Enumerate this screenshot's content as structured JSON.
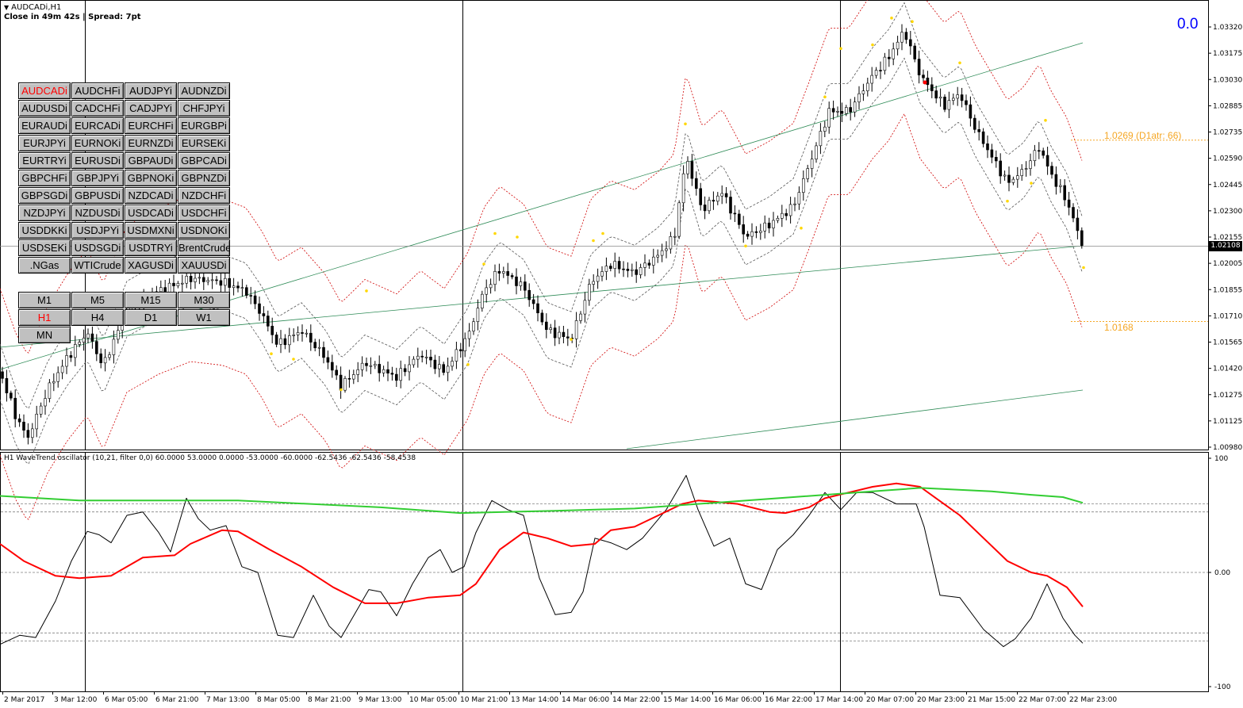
{
  "window": {
    "symbol_title": "AUDCADi,H1",
    "timer_text": "Close in 49m 42s | Spread: 7pt",
    "value_display": "0.0"
  },
  "symbol_buttons": [
    {
      "label": "AUDCADi",
      "active": true
    },
    {
      "label": "AUDCHFi",
      "active": false
    },
    {
      "label": "AUDJPYi",
      "active": false
    },
    {
      "label": "AUDNZDi",
      "active": false
    },
    {
      "label": "AUDUSDi",
      "active": false
    },
    {
      "label": "CADCHFi",
      "active": false
    },
    {
      "label": "CADJPYi",
      "active": false
    },
    {
      "label": "CHFJPYi",
      "active": false
    },
    {
      "label": "EURAUDi",
      "active": false
    },
    {
      "label": "EURCADi",
      "active": false
    },
    {
      "label": "EURCHFi",
      "active": false
    },
    {
      "label": "EURGBPi",
      "active": false
    },
    {
      "label": "EURJPYi",
      "active": false
    },
    {
      "label": "EURNOKi",
      "active": false
    },
    {
      "label": "EURNZDi",
      "active": false
    },
    {
      "label": "EURSEKi",
      "active": false
    },
    {
      "label": "EURTRYi",
      "active": false
    },
    {
      "label": "EURUSDi",
      "active": false
    },
    {
      "label": "GBPAUDi",
      "active": false
    },
    {
      "label": "GBPCADi",
      "active": false
    },
    {
      "label": "GBPCHFi",
      "active": false
    },
    {
      "label": "GBPJPYi",
      "active": false
    },
    {
      "label": "GBPNOKi",
      "active": false
    },
    {
      "label": "GBPNZDi",
      "active": false
    },
    {
      "label": "GBPSGDi",
      "active": false
    },
    {
      "label": "GBPUSDi",
      "active": false
    },
    {
      "label": "NZDCADi",
      "active": false
    },
    {
      "label": "NZDCHFi",
      "active": false
    },
    {
      "label": "NZDJPYi",
      "active": false
    },
    {
      "label": "NZDUSDi",
      "active": false
    },
    {
      "label": "USDCADi",
      "active": false
    },
    {
      "label": "USDCHFi",
      "active": false
    },
    {
      "label": "USDDKKi",
      "active": false
    },
    {
      "label": "USDJPYi",
      "active": false
    },
    {
      "label": "USDMXNi",
      "active": false
    },
    {
      "label": "USDNOKi",
      "active": false
    },
    {
      "label": "USDSEKi",
      "active": false
    },
    {
      "label": "USDSGDi",
      "active": false
    },
    {
      "label": "USDTRYi",
      "active": false
    },
    {
      "label": "BrentCrude",
      "active": false
    },
    {
      "label": ".NGas",
      "active": false
    },
    {
      "label": "WTICrude",
      "active": false
    },
    {
      "label": "XAGUSDi",
      "active": false
    },
    {
      "label": "XAUUSDi",
      "active": false
    }
  ],
  "timeframe_buttons": [
    {
      "label": "M1",
      "active": false
    },
    {
      "label": "M5",
      "active": false
    },
    {
      "label": "M15",
      "active": false
    },
    {
      "label": "M30",
      "active": false
    },
    {
      "label": "H1",
      "active": true
    },
    {
      "label": "H4",
      "active": false
    },
    {
      "label": "D1",
      "active": false
    },
    {
      "label": "W1",
      "active": false
    },
    {
      "label": "MN",
      "active": false
    }
  ],
  "chart_data": [
    {
      "type": "candlestick",
      "ylim": [
        1.0098,
        1.034
      ],
      "price_ticks": [
        "1.03320",
        "1.03175",
        "1.03030",
        "1.02885",
        "1.02735",
        "1.02590",
        "1.02445",
        "1.02300",
        "1.02155",
        "1.02005",
        "1.01855",
        "1.01710",
        "1.01565",
        "1.01420",
        "1.01275",
        "1.01125",
        "1.00980"
      ],
      "current_price": "1.02108",
      "levels": [
        {
          "label": "1.0269  (D1atr: 66)",
          "value": 1.0269
        },
        {
          "label": "1.0168",
          "value": 1.0168
        }
      ],
      "price_path": [
        [
          0,
          1.014
        ],
        [
          20,
          1.0115
        ],
        [
          35,
          1.0103
        ],
        [
          60,
          1.013
        ],
        [
          85,
          1.0148
        ],
        [
          110,
          1.0162
        ],
        [
          130,
          1.0143
        ],
        [
          160,
          1.0175
        ],
        [
          200,
          1.0185
        ],
        [
          240,
          1.0192
        ],
        [
          280,
          1.019
        ],
        [
          310,
          1.0185
        ],
        [
          330,
          1.0172
        ],
        [
          350,
          1.0155
        ],
        [
          380,
          1.0163
        ],
        [
          410,
          1.0148
        ],
        [
          430,
          1.0132
        ],
        [
          460,
          1.0145
        ],
        [
          500,
          1.0137
        ],
        [
          530,
          1.015
        ],
        [
          560,
          1.014
        ],
        [
          590,
          1.016
        ],
        [
          610,
          1.0185
        ],
        [
          630,
          1.0197
        ],
        [
          660,
          1.0187
        ],
        [
          690,
          1.0163
        ],
        [
          720,
          1.0158
        ],
        [
          745,
          1.019
        ],
        [
          770,
          1.02
        ],
        [
          800,
          1.0195
        ],
        [
          830,
          1.0205
        ],
        [
          850,
          1.0215
        ],
        [
          865,
          1.026
        ],
        [
          885,
          1.023
        ],
        [
          910,
          1.024
        ],
        [
          940,
          1.0215
        ],
        [
          970,
          1.0222
        ],
        [
          1000,
          1.0232
        ],
        [
          1020,
          1.0255
        ],
        [
          1045,
          1.0285
        ],
        [
          1070,
          1.0285
        ],
        [
          1100,
          1.0305
        ],
        [
          1120,
          1.0315
        ],
        [
          1140,
          1.033
        ],
        [
          1160,
          1.0305
        ],
        [
          1190,
          1.0288
        ],
        [
          1210,
          1.0295
        ],
        [
          1230,
          1.0275
        ],
        [
          1250,
          1.026
        ],
        [
          1270,
          1.0245
        ],
        [
          1290,
          1.0252
        ],
        [
          1310,
          1.0265
        ],
        [
          1325,
          1.025
        ],
        [
          1345,
          1.0235
        ],
        [
          1365,
          1.021
        ]
      ],
      "fractal_points": [
        [
          1124,
          1.0337
        ],
        [
          1150,
          1.0335
        ],
        [
          1100,
          1.0322
        ],
        [
          1060,
          1.032
        ],
        [
          1040,
          1.0293
        ],
        [
          864,
          1.0278
        ],
        [
          1210,
          1.0312
        ],
        [
          1318,
          1.028
        ],
        [
          652,
          1.0215
        ],
        [
          624,
          1.0217
        ],
        [
          760,
          1.0217
        ],
        [
          748,
          1.0213
        ],
        [
          462,
          1.0185
        ],
        [
          610,
          1.02
        ],
        [
          1366,
          1.0198
        ],
        [
          940,
          1.021
        ],
        [
          1010,
          1.022
        ],
        [
          1270,
          1.0235
        ],
        [
          1300,
          1.0245
        ],
        [
          590,
          1.0144
        ],
        [
          370,
          1.0147
        ],
        [
          342,
          1.015
        ],
        [
          720,
          1.0158
        ],
        [
          430,
          1.013
        ]
      ],
      "vertical_lines_x": [
        107,
        583,
        1059
      ]
    },
    {
      "type": "line",
      "title": "H1 WaveTrend oscillator (10,21, filter 0,0) 60.0000 53.0000 0.0000 -53.0000 -60.0000 -62.5436 -62.5436 -58.4538",
      "ylim": [
        -100,
        100
      ],
      "y_ticks": [
        "100",
        "0.00",
        "-100"
      ],
      "levels": [
        60,
        53,
        0,
        -53,
        -60
      ],
      "series": [
        {
          "name": "",
          "color": "#000000",
          "points": [
            [
              0,
              -63
            ],
            [
              25,
              -55
            ],
            [
              45,
              -57
            ],
            [
              70,
              -25
            ],
            [
              90,
              10
            ],
            [
              110,
              36
            ],
            [
              125,
              33
            ],
            [
              140,
              26
            ],
            [
              160,
              50
            ],
            [
              180,
              53
            ],
            [
              200,
              35
            ],
            [
              215,
              18
            ],
            [
              235,
              65
            ],
            [
              250,
              47
            ],
            [
              265,
              37
            ],
            [
              285,
              41
            ],
            [
              305,
              5
            ],
            [
              325,
              0
            ],
            [
              350,
              -55
            ],
            [
              370,
              -57
            ],
            [
              395,
              -20
            ],
            [
              415,
              -47
            ],
            [
              430,
              -57
            ],
            [
              450,
              -33
            ],
            [
              465,
              -15
            ],
            [
              480,
              -17
            ],
            [
              500,
              -38
            ],
            [
              520,
              -10
            ],
            [
              540,
              13
            ],
            [
              555,
              20
            ],
            [
              570,
              0
            ],
            [
              585,
              5
            ],
            [
              600,
              35
            ],
            [
              620,
              63
            ],
            [
              640,
              55
            ],
            [
              660,
              50
            ],
            [
              680,
              -5
            ],
            [
              700,
              -37
            ],
            [
              720,
              -35
            ],
            [
              735,
              -17
            ],
            [
              750,
              30
            ],
            [
              770,
              26
            ],
            [
              790,
              20
            ],
            [
              810,
              30
            ],
            [
              840,
              55
            ],
            [
              865,
              85
            ],
            [
              880,
              55
            ],
            [
              900,
              23
            ],
            [
              920,
              30
            ],
            [
              940,
              -10
            ],
            [
              960,
              -15
            ],
            [
              980,
              20
            ],
            [
              1000,
              33
            ],
            [
              1020,
              50
            ],
            [
              1040,
              70
            ],
            [
              1060,
              55
            ],
            [
              1080,
              70
            ],
            [
              1100,
              70
            ],
            [
              1130,
              60
            ],
            [
              1155,
              60
            ],
            [
              1165,
              40
            ],
            [
              1185,
              -20
            ],
            [
              1210,
              -22
            ],
            [
              1240,
              -50
            ],
            [
              1265,
              -65
            ],
            [
              1280,
              -58
            ],
            [
              1300,
              -40
            ],
            [
              1320,
              -10
            ],
            [
              1340,
              -40
            ],
            [
              1355,
              -55
            ],
            [
              1365,
              -62
            ]
          ]
        },
        {
          "name": "",
          "color": "#ff0000",
          "points": [
            [
              0,
              25
            ],
            [
              30,
              10
            ],
            [
              70,
              -3
            ],
            [
              100,
              -5
            ],
            [
              140,
              -3
            ],
            [
              180,
              13
            ],
            [
              220,
              15
            ],
            [
              240,
              25
            ],
            [
              280,
              37
            ],
            [
              300,
              36
            ],
            [
              340,
              20
            ],
            [
              380,
              5
            ],
            [
              420,
              -13
            ],
            [
              460,
              -27
            ],
            [
              500,
              -27
            ],
            [
              540,
              -22
            ],
            [
              580,
              -20
            ],
            [
              600,
              -10
            ],
            [
              630,
              20
            ],
            [
              660,
              35
            ],
            [
              690,
              30
            ],
            [
              720,
              23
            ],
            [
              750,
              25
            ],
            [
              770,
              37
            ],
            [
              800,
              40
            ],
            [
              830,
              50
            ],
            [
              860,
              60
            ],
            [
              880,
              63
            ],
            [
              900,
              62
            ],
            [
              930,
              60
            ],
            [
              970,
              53
            ],
            [
              990,
              52
            ],
            [
              1020,
              57
            ],
            [
              1040,
              65
            ],
            [
              1070,
              70
            ],
            [
              1100,
              75
            ],
            [
              1130,
              78
            ],
            [
              1160,
              75
            ],
            [
              1180,
              65
            ],
            [
              1210,
              50
            ],
            [
              1240,
              30
            ],
            [
              1270,
              10
            ],
            [
              1300,
              0
            ],
            [
              1320,
              -3
            ],
            [
              1345,
              -13
            ],
            [
              1365,
              -30
            ]
          ]
        },
        {
          "name": "",
          "color": "#32cd32",
          "points": [
            [
              0,
              67
            ],
            [
              100,
              63
            ],
            [
              300,
              63
            ],
            [
              480,
              57
            ],
            [
              580,
              52
            ],
            [
              700,
              54
            ],
            [
              800,
              56
            ],
            [
              900,
              61
            ],
            [
              1000,
              66
            ],
            [
              1100,
              71
            ],
            [
              1160,
              74
            ],
            [
              1250,
              71
            ],
            [
              1300,
              68
            ],
            [
              1340,
              66
            ],
            [
              1365,
              61
            ]
          ]
        }
      ]
    }
  ],
  "time_axis": {
    "ticks": [
      "2 Mar 2017",
      "3 Mar 12:00",
      "6 Mar 05:00",
      "6 Mar 21:00",
      "7 Mar 13:00",
      "8 Mar 05:00",
      "8 Mar 21:00",
      "9 Mar 13:00",
      "10 Mar 05:00",
      "10 Mar 21:00",
      "13 Mar 14:00",
      "14 Mar 06:00",
      "14 Mar 22:00",
      "15 Mar 14:00",
      "16 Mar 06:00",
      "16 Mar 22:00",
      "17 Mar 14:00",
      "20 Mar 07:00",
      "20 Mar 23:00",
      "21 Mar 15:00",
      "22 Mar 07:00",
      "22 Mar 23:00"
    ]
  }
}
